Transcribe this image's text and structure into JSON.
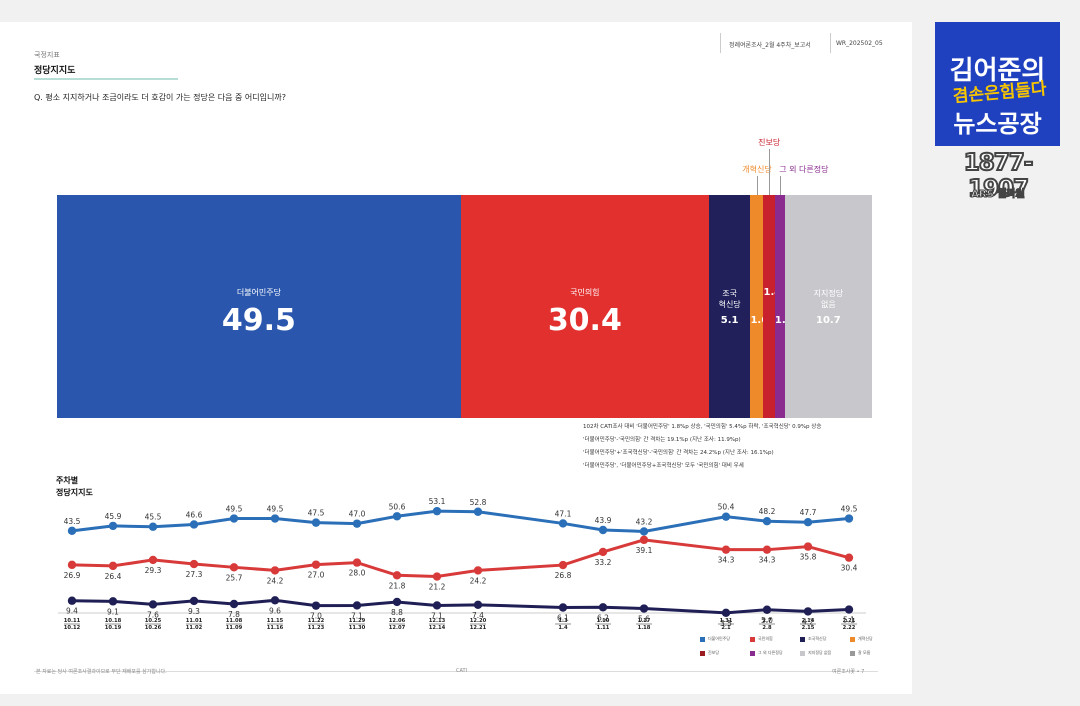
{
  "header": {
    "section": "국정지표",
    "title": "정당지지도",
    "question": "Q. 평소 지지하거나 조금이라도 더 호감이 가는 정당은 다음 중 어디입니까?",
    "report": "정례여론조사_2월 4주차_보고서",
    "code": "WR_202502_05"
  },
  "chart_data": [
    {
      "type": "bar",
      "orientation": "horizontal-stacked-100",
      "categories": [
        "더불어민주당",
        "국민의힘",
        "조국혁신당",
        "개혁신당",
        "진보당",
        "그 외 다른정당",
        "지지정당 없음"
      ],
      "values": [
        49.5,
        30.4,
        5.1,
        1.6,
        1.4,
        1.2,
        10.7
      ],
      "labels": [
        "더불어민주당",
        "국민의힘",
        "조국\n혁신당",
        "개혁신당",
        "진보당",
        "그 외 다른정당",
        "지지정당\n없음"
      ],
      "colors": [
        "#2a57ad",
        "#e2302f",
        "#21205a",
        "#ef8a2a",
        "#c8202d",
        "#8a2b8f",
        "#c8c8cc"
      ]
    },
    {
      "type": "line",
      "title": "주차별\n정당지지도",
      "x": [
        "10.11\n10.12",
        "10.18\n10.19",
        "10.25\n10.26",
        "11.01\n11.02",
        "11.08\n11.09",
        "11.15\n11.16",
        "11.22\n11.23",
        "11.29\n11.30",
        "12.06\n12.07",
        "12.13\n12.14",
        "12.20\n12.21",
        "1.3\n1.4",
        "1.10\n1.11",
        "1.17\n1.18",
        "1.31\n2.1",
        "2.7\n2.8",
        "2.14\n2.15",
        "2.21\n2.22"
      ],
      "series": [
        {
          "name": "더불어민주당",
          "color": "#2a6fb7",
          "values": [
            43.5,
            45.9,
            45.5,
            46.6,
            49.5,
            49.5,
            47.5,
            47.0,
            50.6,
            53.1,
            52.8,
            47.1,
            43.9,
            43.2,
            50.4,
            48.2,
            47.7,
            49.5
          ]
        },
        {
          "name": "국민의힘",
          "color": "#d83a3a",
          "values": [
            26.9,
            26.4,
            29.3,
            27.3,
            25.7,
            24.2,
            27.0,
            28.0,
            21.8,
            21.2,
            24.2,
            26.8,
            33.2,
            39.1,
            34.3,
            34.3,
            35.8,
            30.4
          ]
        },
        {
          "name": "조국혁신당",
          "color": "#1f1f55",
          "values": [
            9.4,
            9.1,
            7.6,
            9.3,
            7.8,
            9.6,
            7.0,
            7.1,
            8.8,
            7.1,
            7.4,
            6.1,
            6.2,
            5.6,
            3.5,
            5.0,
            4.2,
            5.1
          ]
        }
      ],
      "labels": [
        [
          "43.5",
          "45.9",
          "45.5",
          "46.6",
          "49.5",
          "49.5",
          "47.5",
          "47.0",
          "50.6",
          "53.1",
          "52.8",
          "47.1",
          "43.9",
          "43.2",
          "50.4",
          "48.2",
          "47.7",
          "49.5"
        ],
        [
          "26.9",
          "26.4",
          "29.3",
          "27.3",
          "25.7",
          "24.2",
          "27.0",
          "28.0",
          "21.8",
          "21.2",
          "24.2",
          "26.8",
          "33.2",
          "39.1",
          "34.3",
          "34.3",
          "35.8",
          "30.4"
        ],
        [
          "9.4",
          "9.1",
          "7.6",
          "9.3",
          "7.8",
          "9.6",
          "7.0",
          "7.1",
          "8.8",
          "7.1",
          "7.4",
          "6.1",
          "6.2",
          "5.6",
          "3.5",
          "5.0",
          "4.2",
          "5.1"
        ]
      ],
      "legend": [
        {
          "name": "더불어민주당",
          "color": "#2a6fb7"
        },
        {
          "name": "국민의힘",
          "color": "#d83a3a"
        },
        {
          "name": "조국혁신당",
          "color": "#1f1f55"
        },
        {
          "name": "개혁신당",
          "color": "#ef8a2a"
        },
        {
          "name": "진보당",
          "color": "#9b1d22"
        },
        {
          "name": "그 외 다른정당",
          "color": "#8a2b8f"
        },
        {
          "name": "지지정당 없음",
          "color": "#c8c8cc"
        },
        {
          "name": "잘 모름",
          "color": "#999999"
        }
      ]
    }
  ],
  "notes": [
    "102차 CATI조사 대비 '더불어민주당' 1.8%p 상승, '국민의힘' 5.4%p 하락, '조국혁신당' 0.9%p 상승",
    "'더불어민주당'-'국민의힘' 간 격차는 19.1%p (지난 조사: 11.9%p)",
    "'더불어민주당'+'조국혁신당'-'국민의힘' 간 격차는 24.2%p (지난 조사: 16.1%p)",
    "'더불어민주당', '더불어민주당+조국혁신당' 모두 '국민의힘' 대비 우세"
  ],
  "footer": {
    "left": "본 자료는 당사 여론조사결과이므로 무단 재배포를 삼가합니다.",
    "center": "CATI",
    "right": "여론조사꽃  •  7"
  },
  "badge": {
    "line1": "김어준의",
    "line2": "겸손은힘들다",
    "line3": "뉴스공장",
    "number": "1877-1907",
    "label": "ARS 웹파일"
  }
}
